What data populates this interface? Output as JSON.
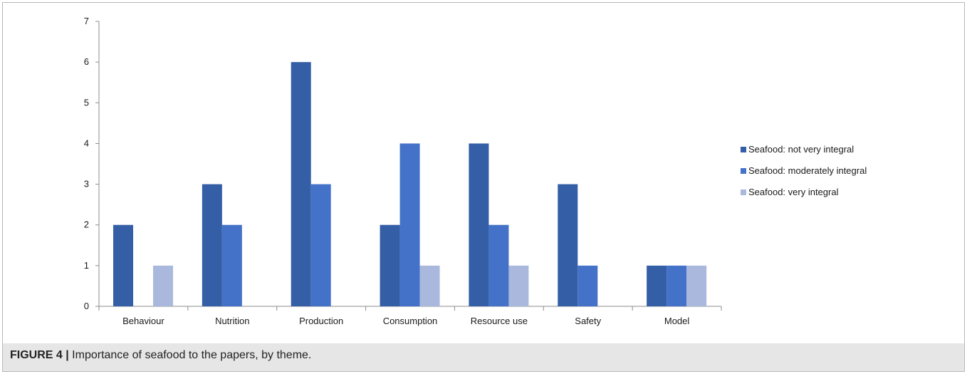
{
  "caption": {
    "label": "FIGURE 4 |",
    "text": " Importance of seafood to the papers, by theme."
  },
  "chart_data": {
    "type": "bar",
    "categories": [
      "Behaviour",
      "Nutrition",
      "Production",
      "Consumption",
      "Resource use",
      "Safety",
      "Model"
    ],
    "series": [
      {
        "name": "Seafood: not very integral",
        "color": "#345ea5",
        "values": [
          2,
          3,
          6,
          2,
          4,
          3,
          1
        ]
      },
      {
        "name": "Seafood: moderately integral",
        "color": "#4472c8",
        "values": [
          0,
          2,
          3,
          4,
          2,
          1,
          1
        ]
      },
      {
        "name": "Seafood: very integral",
        "color": "#a9b8dc",
        "values": [
          1,
          0,
          0,
          1,
          1,
          0,
          1
        ]
      }
    ],
    "title": "",
    "xlabel": "",
    "ylabel": "",
    "ylim": [
      0,
      7
    ],
    "yticks": [
      "0",
      "1",
      "2",
      "3",
      "4",
      "5",
      "6",
      "7"
    ],
    "legend_position": "right",
    "grid": false
  }
}
